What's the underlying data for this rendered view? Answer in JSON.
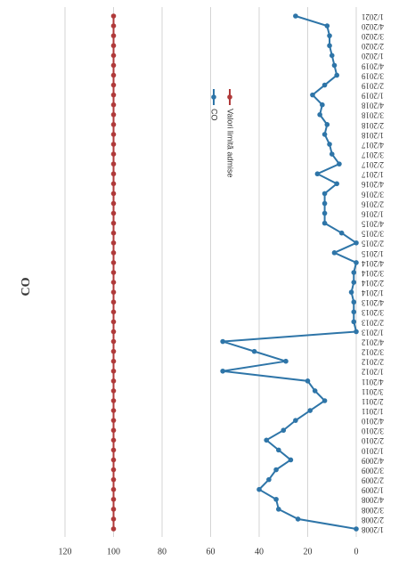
{
  "chart_data": {
    "type": "line",
    "title": "CO",
    "categories": [
      "1/2008",
      "2/2008",
      "3/2008",
      "4/2008",
      "1/2009",
      "2/2009",
      "3/2009",
      "4/2009",
      "1/2010",
      "2/2010",
      "3/2010",
      "4/2010",
      "1/2011",
      "2/2011",
      "3/2011",
      "4/2011",
      "1/2012",
      "2/2012",
      "3/2012",
      "4/2012",
      "1/2013",
      "2/2013",
      "3/2013",
      "4/2013",
      "1/2014",
      "2/2014",
      "3/2014",
      "4/2014",
      "1/2015",
      "2/2015",
      "3/2015",
      "4/2015",
      "1/2016",
      "2/2016",
      "3/2016",
      "4/2016",
      "1/2017",
      "2/2017",
      "3/2017",
      "4/2017",
      "1/2018",
      "2/2018",
      "3/2018",
      "4/2018",
      "1/2019",
      "2/2019",
      "3/2019",
      "4/2019",
      "1/2020",
      "2/2020",
      "3/2020",
      "4/2020",
      "1/2021"
    ],
    "series": [
      {
        "name": "CO",
        "color": "#2e75a8",
        "values": [
          0,
          24,
          32,
          33,
          40,
          36,
          33,
          27,
          32,
          37,
          30,
          25,
          19,
          13,
          17,
          20,
          55,
          29,
          42,
          55,
          0,
          1,
          1,
          1,
          2,
          1,
          1,
          0,
          9,
          0,
          6,
          13,
          13,
          13,
          13,
          8,
          16,
          7,
          10,
          11,
          13,
          12,
          15,
          14,
          18,
          13,
          8,
          9,
          10,
          11,
          11,
          12,
          25
        ]
      },
      {
        "name": "Valori limită admise",
        "color": "#b03a3a",
        "values": [
          100,
          100,
          100,
          100,
          100,
          100,
          100,
          100,
          100,
          100,
          100,
          100,
          100,
          100,
          100,
          100,
          100,
          100,
          100,
          100,
          100,
          100,
          100,
          100,
          100,
          100,
          100,
          100,
          100,
          100,
          100,
          100,
          100,
          100,
          100,
          100,
          100,
          100,
          100,
          100,
          100,
          100,
          100,
          100,
          100,
          100,
          100,
          100,
          100,
          100,
          100,
          100,
          100
        ]
      }
    ],
    "ylim": [
      0,
      120
    ],
    "yticks": [
      0,
      20,
      40,
      60,
      80,
      100,
      120
    ],
    "grid": true,
    "legend": "right"
  }
}
